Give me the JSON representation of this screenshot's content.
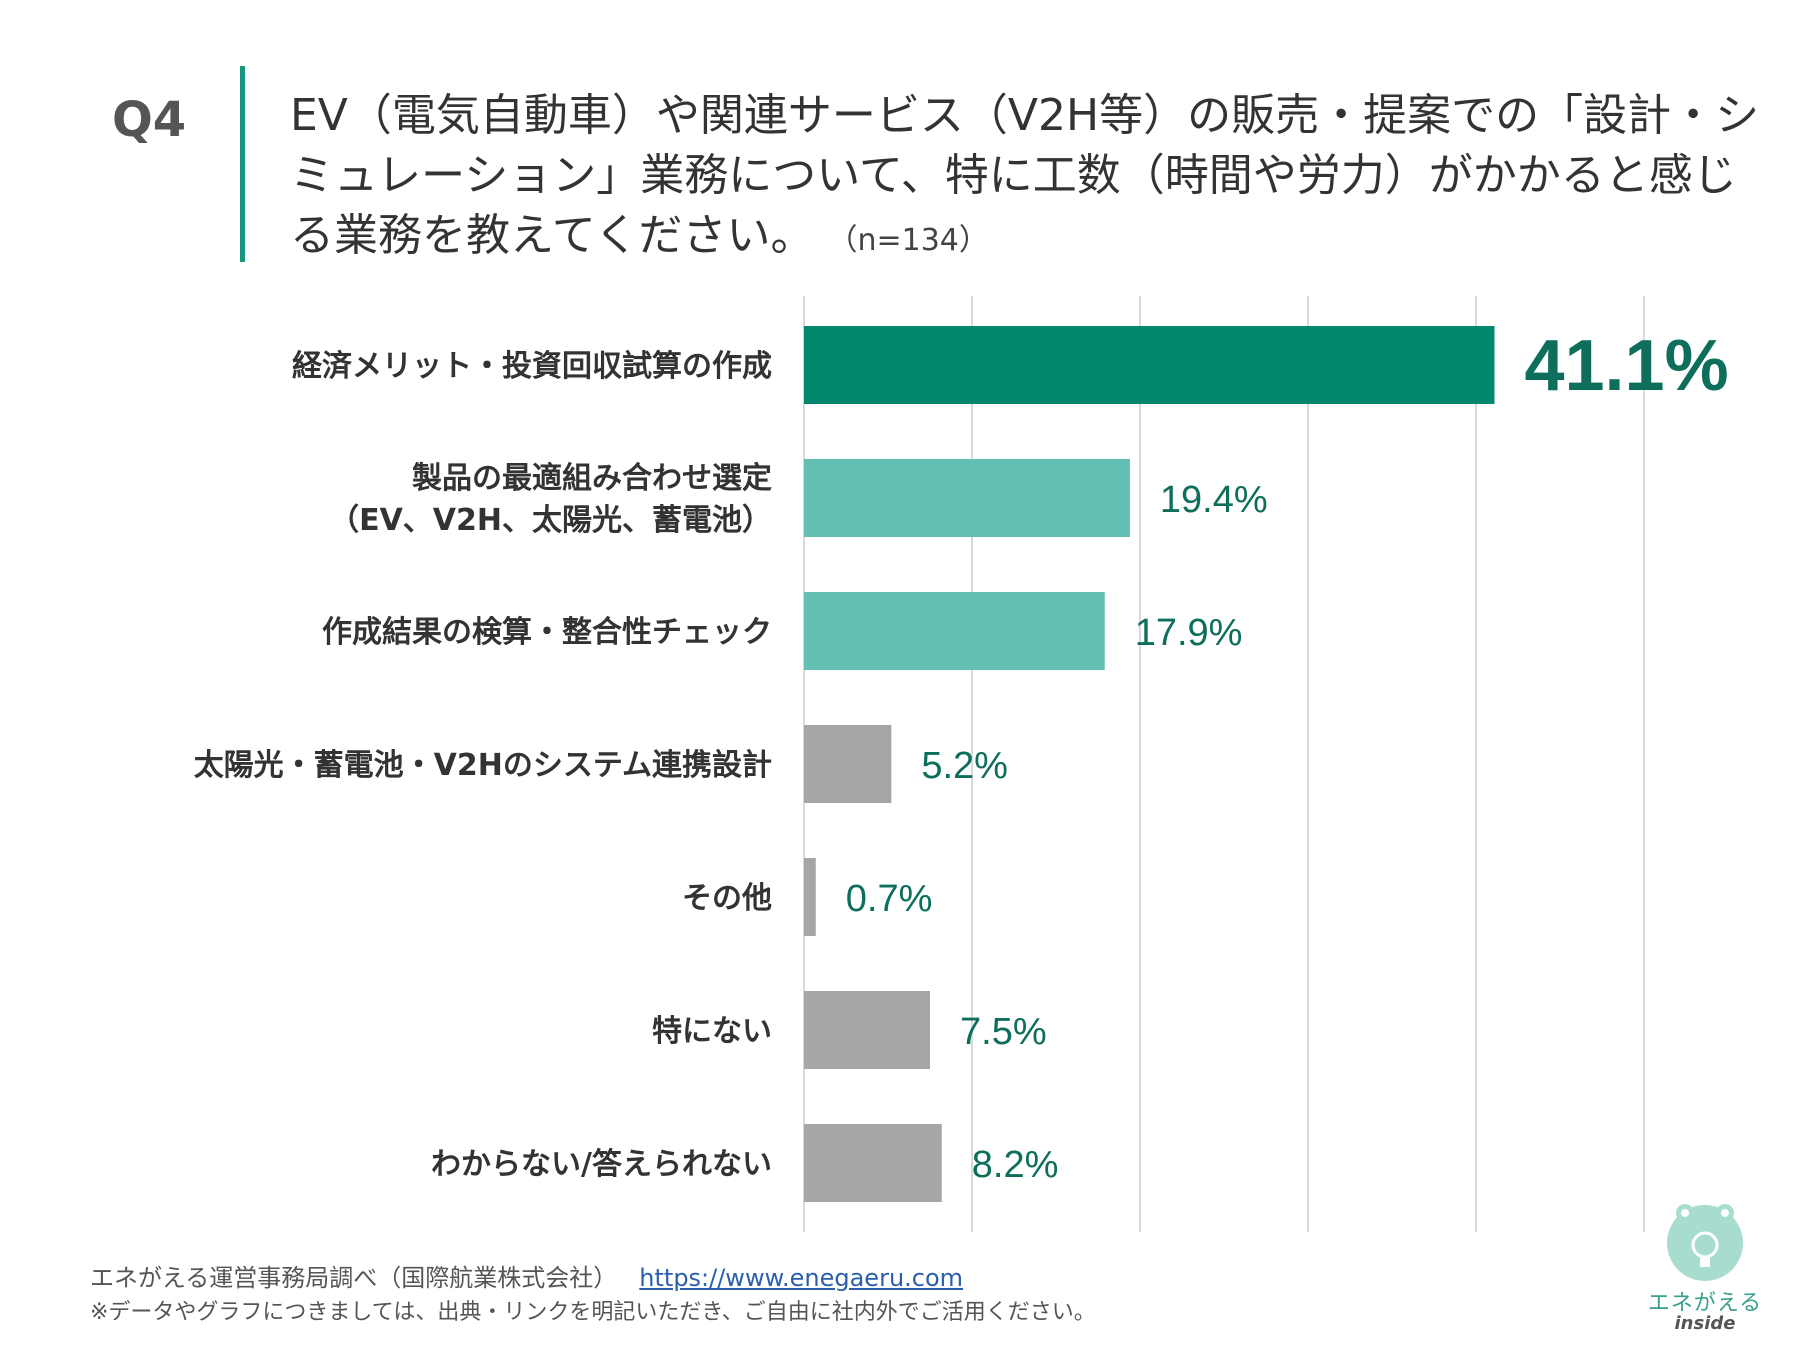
{
  "question": {
    "label": "Q4",
    "text": "EV（電気自動車）や関連サービス（V2H等）の販売・提案での「設計・シミュレーション」業務について、特に工数（時間や労力）がかかると感じる業務を教えてください。",
    "n": "（n=134）"
  },
  "chart_data": {
    "type": "bar",
    "orientation": "horizontal",
    "categories": [
      [
        "経済メリット・投資回収試算の作成"
      ],
      [
        "製品の最適組み合わせ選定",
        "（EV、V2H、太陽光、蓄電池）"
      ],
      [
        "作成結果の検算・整合性チェック"
      ],
      [
        "太陽光・蓄電池・V2Hのシステム連携設計"
      ],
      [
        "その他"
      ],
      [
        "特にない"
      ],
      [
        "わからない/答えられない"
      ]
    ],
    "values": [
      41.1,
      19.4,
      17.9,
      5.2,
      0.7,
      7.5,
      8.2
    ],
    "value_labels": [
      "41.1%",
      "19.4%",
      "17.9%",
      "5.2%",
      "0.7%",
      "7.5%",
      "8.2%"
    ],
    "xlim": [
      0,
      50
    ],
    "grid_step": 10,
    "grid": true,
    "colors": {
      "top": "#00876e",
      "second": "#62bfb2",
      "rest": "#a6a6a6",
      "label": "#0d6e5c",
      "grid": "#d9d9d9"
    }
  },
  "footer": {
    "source": "エネがえる運営事務局調べ（国際航業株式会社）",
    "url": "https://www.enegaeru.com",
    "note": "※データやグラフにつきましては、出典・リンクを明記いただき、ご自由に社内外でご活用ください。"
  },
  "logo": {
    "name": "エネがえる",
    "sub": "inside"
  }
}
